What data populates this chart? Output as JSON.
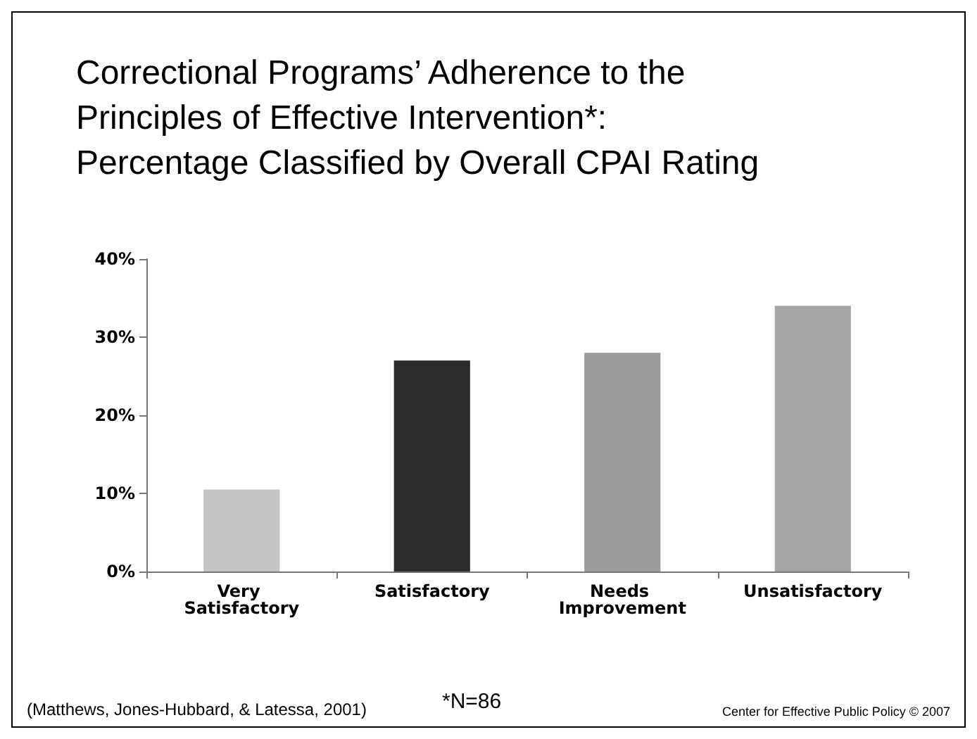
{
  "chart_data": {
    "type": "bar",
    "title": "Correctional Programs’ Adherence to the Principles of Effective Intervention*: Percentage Classified by Overall CPAI Rating",
    "categories": [
      "Very Satisfactory",
      "Satisfactory",
      "Needs Improvement",
      "Unsatisfactory"
    ],
    "values": [
      10.5,
      27,
      28,
      34
    ],
    "colors": [
      "#c4c4c4",
      "#2c2c2c",
      "#9c9c9c",
      "#a6a6a6"
    ],
    "ylim": [
      0,
      40
    ],
    "yticks": [
      {
        "value": 0,
        "label": "0%"
      },
      {
        "value": 10,
        "label": "10%"
      },
      {
        "value": 20,
        "label": "20%"
      },
      {
        "value": 30,
        "label": "30%"
      },
      {
        "value": 40,
        "label": "40%"
      }
    ],
    "grid": false,
    "annotations": [
      "(Matthews, Jones-Hubbard, & Latessa, 2001)",
      "*N=86",
      "Center for Effective Public Policy © 2007"
    ]
  }
}
